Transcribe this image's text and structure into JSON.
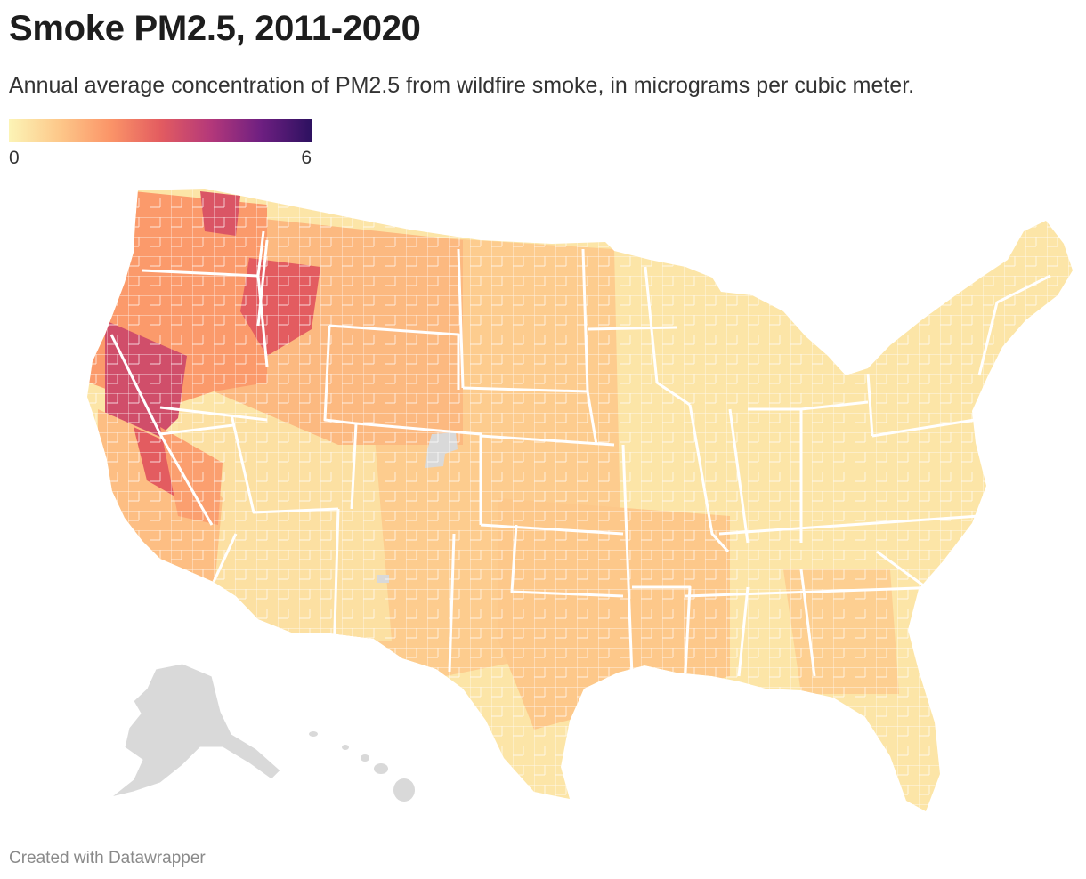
{
  "title": "Smoke PM2.5, 2011-2020",
  "subtitle": "Annual average concentration of PM2.5 from wildfire smoke, in micrograms per cubic meter.",
  "legend": {
    "min_label": "0",
    "max_label": "6",
    "min": 0,
    "max": 6,
    "colors": [
      "#fcf4b6",
      "#fdc88a",
      "#fb9568",
      "#e35c60",
      "#b4387a",
      "#6e1f81",
      "#2d1160"
    ]
  },
  "map": {
    "no_data_color": "#d9d9d9",
    "border_color": "#ffffff"
  },
  "credit": "Created with Datawrapper"
}
